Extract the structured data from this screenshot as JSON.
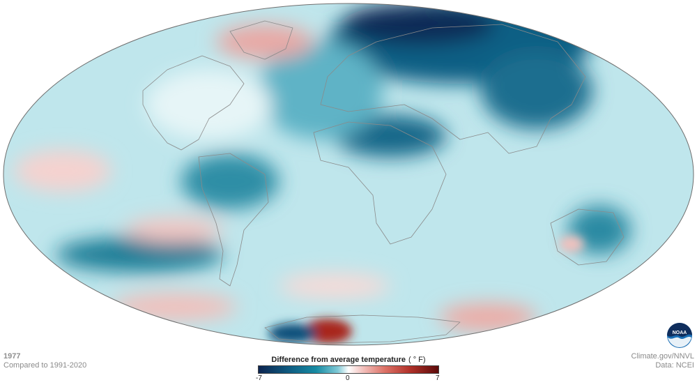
{
  "map": {
    "projection": "Hammer-like equal-area world projection",
    "field": "temperature anomaly",
    "colors": {
      "coldest": "#0c2450",
      "cold": "#178ba3",
      "cool": "#bfe6ec",
      "neutral": "#ffffff",
      "warm": "#f3c1bd",
      "hot": "#b2322a",
      "hottest": "#5c0a0a",
      "coastline": "#8a8a8a"
    }
  },
  "info": {
    "year": "1977",
    "comparison": "Compared to 1991-2020"
  },
  "legend": {
    "title": "Difference from average temperature",
    "unit": "( ° F)",
    "min_label": "-7",
    "mid_label": "0",
    "max_label": "7"
  },
  "credits": {
    "source": "Climate.gov/NNVL",
    "data": "Data: NCEI"
  },
  "logo": {
    "icon": "noaa-logo-icon",
    "text": "NOAA"
  }
}
